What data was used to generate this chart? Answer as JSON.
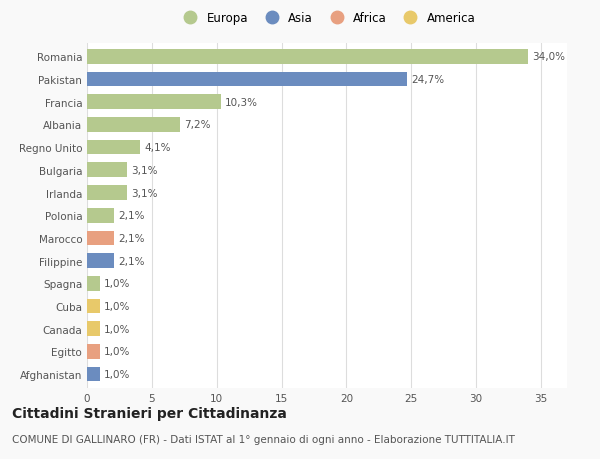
{
  "categories": [
    "Afghanistan",
    "Egitto",
    "Canada",
    "Cuba",
    "Spagna",
    "Filippine",
    "Marocco",
    "Polonia",
    "Irlanda",
    "Bulgaria",
    "Regno Unito",
    "Albania",
    "Francia",
    "Pakistan",
    "Romania"
  ],
  "values": [
    1.0,
    1.0,
    1.0,
    1.0,
    1.0,
    2.1,
    2.1,
    2.1,
    3.1,
    3.1,
    4.1,
    7.2,
    10.3,
    24.7,
    34.0
  ],
  "labels": [
    "1,0%",
    "1,0%",
    "1,0%",
    "1,0%",
    "1,0%",
    "2,1%",
    "2,1%",
    "2,1%",
    "3,1%",
    "3,1%",
    "4,1%",
    "7,2%",
    "10,3%",
    "24,7%",
    "34,0%"
  ],
  "bar_colors": [
    "#6b8cbf",
    "#e8a080",
    "#e8c96a",
    "#e8c96a",
    "#b5c98e",
    "#6b8cbf",
    "#e8a080",
    "#b5c98e",
    "#b5c98e",
    "#b5c98e",
    "#b5c98e",
    "#b5c98e",
    "#b5c98e",
    "#6b8cbf",
    "#b5c98e"
  ],
  "legend_labels": [
    "Europa",
    "Asia",
    "Africa",
    "America"
  ],
  "legend_colors": [
    "#b5c98e",
    "#6b8cbf",
    "#e8a080",
    "#e8c96a"
  ],
  "title": "Cittadini Stranieri per Cittadinanza",
  "subtitle": "COMUNE DI GALLINARO (FR) - Dati ISTAT al 1° gennaio di ogni anno - Elaborazione TUTTITALIA.IT",
  "xlim": [
    0,
    37
  ],
  "xticks": [
    0,
    5,
    10,
    15,
    20,
    25,
    30,
    35
  ],
  "background_color": "#f9f9f9",
  "plot_bg_color": "#ffffff",
  "grid_color": "#dddddd",
  "bar_height": 0.65,
  "title_fontsize": 10,
  "subtitle_fontsize": 7.5,
  "label_fontsize": 7.5,
  "tick_fontsize": 7.5,
  "legend_fontsize": 8.5
}
